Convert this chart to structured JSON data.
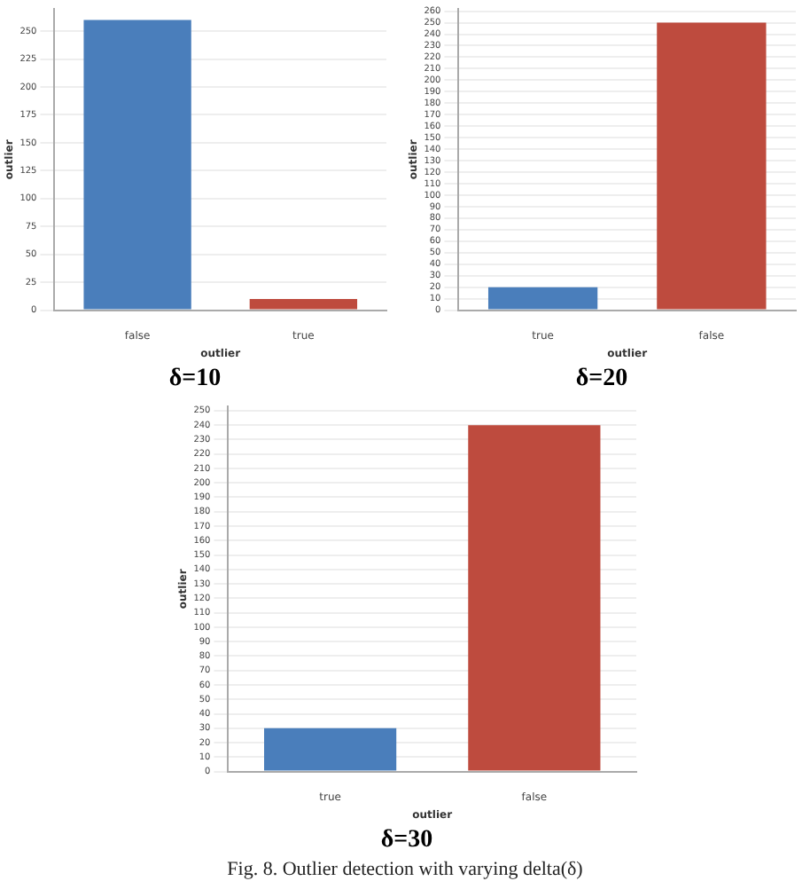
{
  "chart_data": [
    {
      "type": "bar",
      "title": "δ=10",
      "xlabel": "outlier",
      "ylabel": "outlier",
      "categories": [
        "false",
        "true"
      ],
      "values": [
        260,
        10
      ],
      "colors": [
        "#4a7ebb",
        "#be4b3e"
      ],
      "ylim": [
        0,
        270
      ],
      "yticks": [
        0,
        25,
        50,
        75,
        100,
        125,
        150,
        175,
        200,
        225,
        250
      ],
      "grid": "y"
    },
    {
      "type": "bar",
      "title": "δ=20",
      "xlabel": "outlier",
      "ylabel": "outlier",
      "categories": [
        "true",
        "false"
      ],
      "values": [
        20,
        250
      ],
      "colors": [
        "#4a7ebb",
        "#be4b3e"
      ],
      "ylim": [
        0,
        262
      ],
      "yticks": [
        0,
        10,
        20,
        30,
        40,
        50,
        60,
        70,
        80,
        90,
        100,
        110,
        120,
        130,
        140,
        150,
        160,
        170,
        180,
        190,
        200,
        210,
        220,
        230,
        240,
        250,
        260
      ],
      "grid": "y"
    },
    {
      "type": "bar",
      "title": "δ=30",
      "xlabel": "outlier",
      "ylabel": "outlier",
      "categories": [
        "true",
        "false"
      ],
      "values": [
        30,
        240
      ],
      "colors": [
        "#4a7ebb",
        "#be4b3e"
      ],
      "ylim": [
        0,
        253
      ],
      "yticks": [
        0,
        10,
        20,
        30,
        40,
        50,
        60,
        70,
        80,
        90,
        100,
        110,
        120,
        130,
        140,
        150,
        160,
        170,
        180,
        190,
        200,
        210,
        220,
        230,
        240,
        250
      ],
      "grid": "y",
      "annotations": [
        "Fig. 8. Outlier detection with varying delta(δ)"
      ]
    }
  ]
}
